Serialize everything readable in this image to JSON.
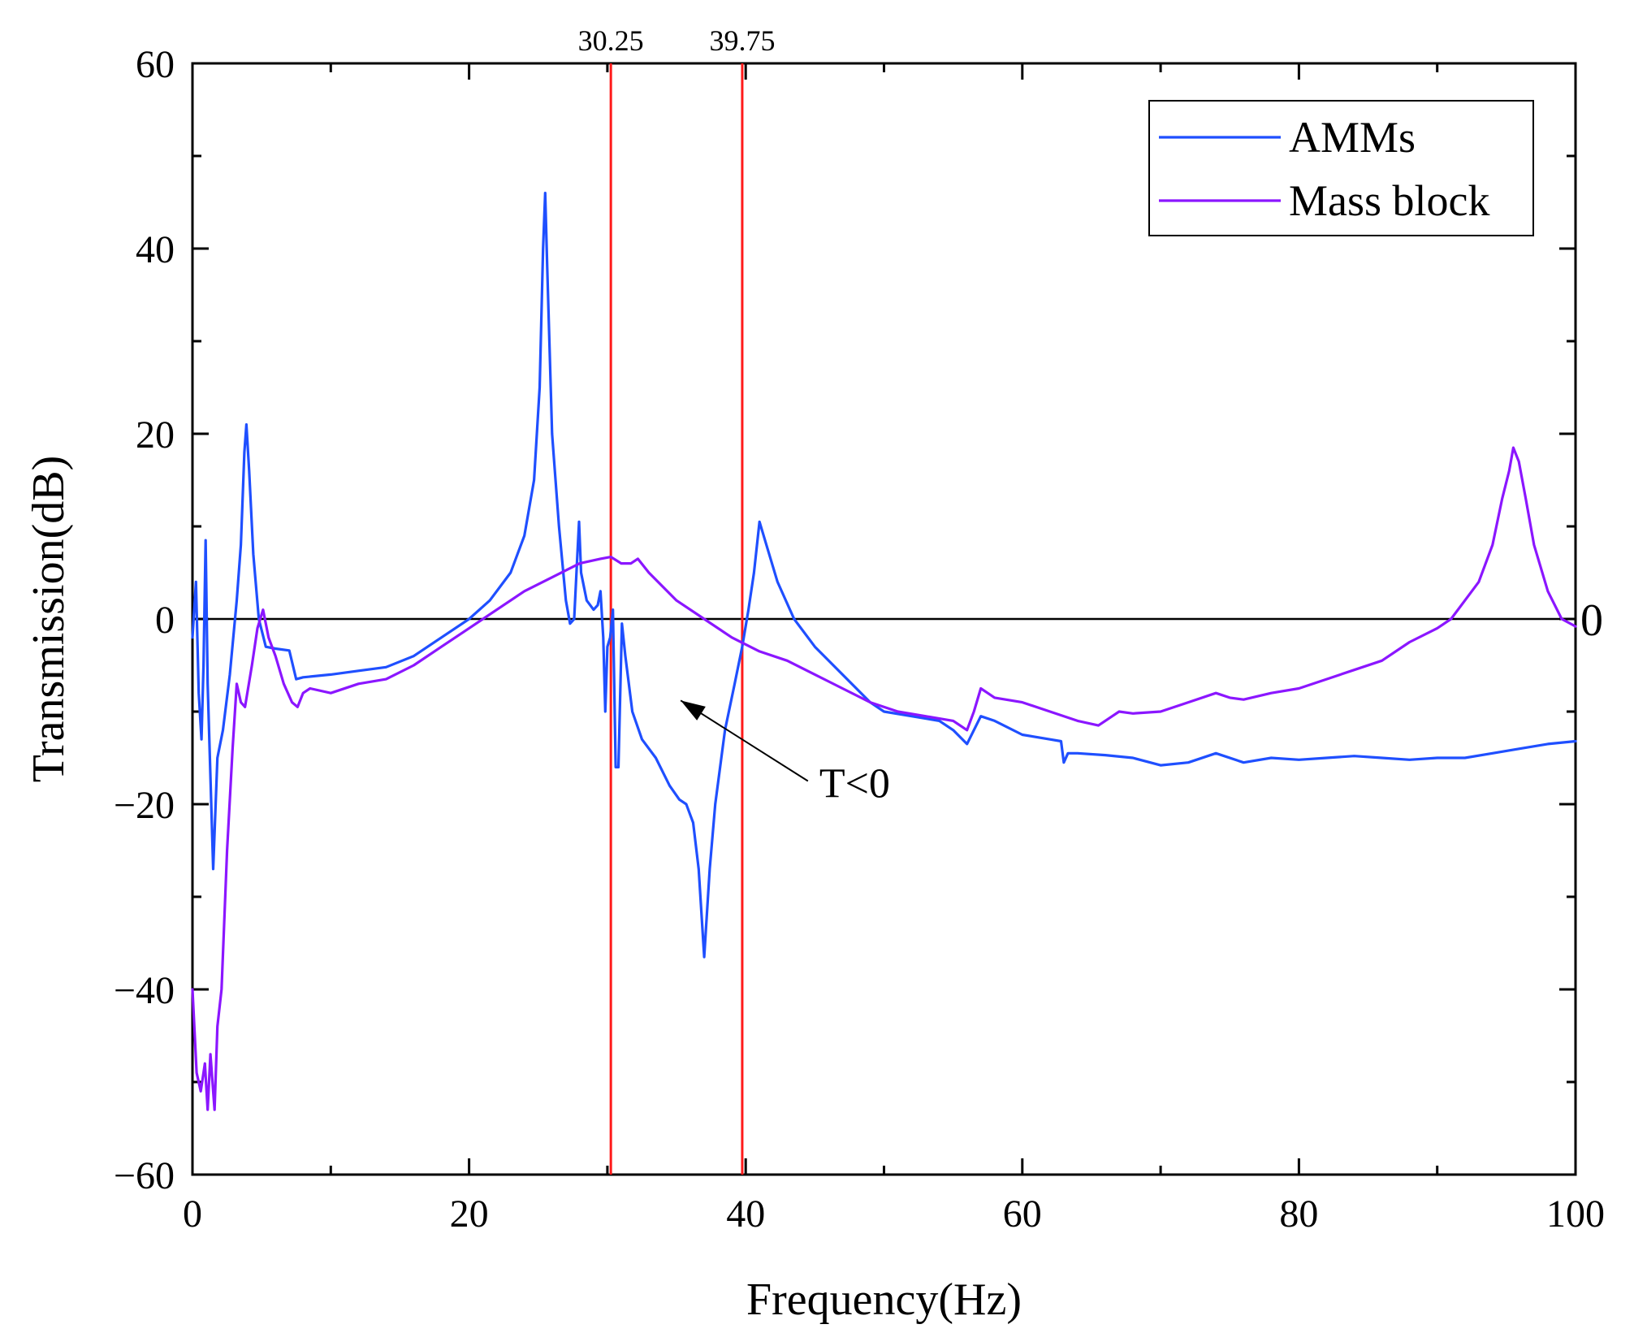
{
  "chart_data": {
    "type": "line",
    "title": "",
    "xlabel": "Frequency(Hz)",
    "ylabel": "Transmission(dB)",
    "xlim": [
      0,
      100
    ],
    "ylim": [
      -60,
      60
    ],
    "x_ticks": [
      0,
      20,
      40,
      60,
      80,
      100
    ],
    "y_ticks": [
      -60,
      -40,
      -20,
      0,
      20,
      40,
      60
    ],
    "grid": false,
    "legend_position": "top-right",
    "reference_lines": {
      "vertical": [
        {
          "x": 30.25,
          "label": "30.25",
          "color": "#ff1a1a"
        },
        {
          "x": 39.75,
          "label": "39.75",
          "color": "#ff1a1a"
        }
      ],
      "horizontal": [
        {
          "y": 0,
          "label": "0",
          "color": "#000000"
        }
      ]
    },
    "annotation": {
      "text": "T<0",
      "arrow_from": [
        44.5,
        -17.5
      ],
      "arrow_to": [
        35.3,
        -8.8
      ]
    },
    "series": [
      {
        "name": "AMMs",
        "color": "#1f4fff",
        "points": [
          [
            0,
            -2
          ],
          [
            0.25,
            4
          ],
          [
            0.45,
            -8
          ],
          [
            0.65,
            -13
          ],
          [
            0.8,
            -5
          ],
          [
            0.95,
            8.5
          ],
          [
            1.1,
            -7
          ],
          [
            1.3,
            -17
          ],
          [
            1.5,
            -27
          ],
          [
            1.8,
            -15
          ],
          [
            2.2,
            -12
          ],
          [
            2.7,
            -6
          ],
          [
            3.2,
            2
          ],
          [
            3.5,
            8
          ],
          [
            3.75,
            18
          ],
          [
            3.9,
            21
          ],
          [
            4.1,
            16
          ],
          [
            4.4,
            7
          ],
          [
            4.8,
            0
          ],
          [
            5.3,
            -3
          ],
          [
            6,
            -3.2
          ],
          [
            7,
            -3.4
          ],
          [
            7.5,
            -6.5
          ],
          [
            8,
            -6.3
          ],
          [
            10,
            -6
          ],
          [
            12,
            -5.6
          ],
          [
            14,
            -5.2
          ],
          [
            16,
            -4
          ],
          [
            18,
            -2
          ],
          [
            20,
            0
          ],
          [
            21.5,
            2
          ],
          [
            23,
            5
          ],
          [
            24,
            9
          ],
          [
            24.7,
            15
          ],
          [
            25.1,
            25
          ],
          [
            25.35,
            40
          ],
          [
            25.5,
            46
          ],
          [
            25.65,
            38
          ],
          [
            26,
            20
          ],
          [
            26.5,
            10
          ],
          [
            27,
            2
          ],
          [
            27.3,
            -0.5
          ],
          [
            27.6,
            0
          ],
          [
            27.8,
            6
          ],
          [
            27.95,
            10.5
          ],
          [
            28.1,
            5
          ],
          [
            28.5,
            2
          ],
          [
            29,
            1
          ],
          [
            29.3,
            1.5
          ],
          [
            29.5,
            3
          ],
          [
            29.7,
            -2
          ],
          [
            29.85,
            -10
          ],
          [
            30,
            -3
          ],
          [
            30.2,
            -2
          ],
          [
            30.4,
            1
          ],
          [
            30.6,
            -16
          ],
          [
            30.8,
            -16
          ],
          [
            31.05,
            -0.5
          ],
          [
            31.3,
            -4
          ],
          [
            31.8,
            -10
          ],
          [
            32.5,
            -13
          ],
          [
            33.5,
            -15
          ],
          [
            34.5,
            -18
          ],
          [
            35.2,
            -19.5
          ],
          [
            35.7,
            -20
          ],
          [
            36.2,
            -22
          ],
          [
            36.6,
            -27
          ],
          [
            37,
            -36.5
          ],
          [
            37.4,
            -27
          ],
          [
            37.8,
            -20
          ],
          [
            38.5,
            -12
          ],
          [
            39.2,
            -7
          ],
          [
            39.75,
            -3
          ],
          [
            40.2,
            1
          ],
          [
            40.6,
            5
          ],
          [
            41,
            10.5
          ],
          [
            41.5,
            8
          ],
          [
            42.3,
            4
          ],
          [
            43.5,
            0
          ],
          [
            45,
            -3
          ],
          [
            47,
            -6
          ],
          [
            49,
            -9
          ],
          [
            50,
            -10
          ],
          [
            52,
            -10.5
          ],
          [
            54,
            -11
          ],
          [
            55,
            -12
          ],
          [
            56,
            -13.5
          ],
          [
            57,
            -10.5
          ],
          [
            58,
            -11
          ],
          [
            60,
            -12.5
          ],
          [
            62,
            -13
          ],
          [
            62.8,
            -13.2
          ],
          [
            63,
            -15.5
          ],
          [
            63.3,
            -14.5
          ],
          [
            64,
            -14.5
          ],
          [
            66,
            -14.7
          ],
          [
            68,
            -15
          ],
          [
            70,
            -15.8
          ],
          [
            72,
            -15.5
          ],
          [
            74,
            -14.5
          ],
          [
            76,
            -15.5
          ],
          [
            78,
            -15
          ],
          [
            80,
            -15.2
          ],
          [
            82,
            -15
          ],
          [
            84,
            -14.8
          ],
          [
            86,
            -15
          ],
          [
            88,
            -15.2
          ],
          [
            90,
            -15
          ],
          [
            92,
            -15
          ],
          [
            94,
            -14.5
          ],
          [
            96,
            -14
          ],
          [
            98,
            -13.5
          ],
          [
            100,
            -13.2
          ]
        ]
      },
      {
        "name": "Mass block",
        "color": "#8b16ff",
        "points": [
          [
            0,
            -40
          ],
          [
            0.3,
            -49
          ],
          [
            0.6,
            -51
          ],
          [
            0.9,
            -48
          ],
          [
            1.1,
            -53
          ],
          [
            1.3,
            -47
          ],
          [
            1.6,
            -53
          ],
          [
            1.8,
            -44
          ],
          [
            2.1,
            -40
          ],
          [
            2.5,
            -25
          ],
          [
            2.9,
            -14
          ],
          [
            3.2,
            -7
          ],
          [
            3.5,
            -9
          ],
          [
            3.8,
            -9.5
          ],
          [
            4.3,
            -5
          ],
          [
            4.7,
            -1
          ],
          [
            5.1,
            1
          ],
          [
            5.5,
            -2
          ],
          [
            6,
            -4
          ],
          [
            6.6,
            -7
          ],
          [
            7.2,
            -9
          ],
          [
            7.6,
            -9.5
          ],
          [
            8,
            -8
          ],
          [
            8.5,
            -7.5
          ],
          [
            10,
            -8
          ],
          [
            12,
            -7
          ],
          [
            14,
            -6.5
          ],
          [
            16,
            -5
          ],
          [
            18,
            -3
          ],
          [
            20,
            -1
          ],
          [
            22,
            1
          ],
          [
            24,
            3
          ],
          [
            26,
            4.5
          ],
          [
            28,
            6
          ],
          [
            29.5,
            6.5
          ],
          [
            30.25,
            6.7
          ],
          [
            31,
            6
          ],
          [
            31.7,
            6
          ],
          [
            32.2,
            6.5
          ],
          [
            33,
            5
          ],
          [
            35,
            2
          ],
          [
            37,
            0
          ],
          [
            39,
            -2
          ],
          [
            41,
            -3.5
          ],
          [
            43,
            -4.5
          ],
          [
            45,
            -6
          ],
          [
            47,
            -7.5
          ],
          [
            49,
            -9
          ],
          [
            51,
            -10
          ],
          [
            53,
            -10.5
          ],
          [
            55,
            -11
          ],
          [
            56,
            -12
          ],
          [
            56.5,
            -10
          ],
          [
            57,
            -7.5
          ],
          [
            57.5,
            -8
          ],
          [
            58,
            -8.5
          ],
          [
            60,
            -9
          ],
          [
            62,
            -10
          ],
          [
            64,
            -11
          ],
          [
            65.5,
            -11.5
          ],
          [
            66.5,
            -10.5
          ],
          [
            67,
            -10
          ],
          [
            68,
            -10.2
          ],
          [
            70,
            -10
          ],
          [
            72,
            -9
          ],
          [
            74,
            -8
          ],
          [
            75,
            -8.5
          ],
          [
            76,
            -8.7
          ],
          [
            78,
            -8
          ],
          [
            80,
            -7.5
          ],
          [
            82,
            -6.5
          ],
          [
            84,
            -5.5
          ],
          [
            86,
            -4.5
          ],
          [
            88,
            -2.5
          ],
          [
            90,
            -1
          ],
          [
            91,
            0
          ],
          [
            92,
            2
          ],
          [
            93,
            4
          ],
          [
            94,
            8
          ],
          [
            94.7,
            13
          ],
          [
            95.2,
            16
          ],
          [
            95.5,
            18.5
          ],
          [
            95.9,
            17
          ],
          [
            96.4,
            13
          ],
          [
            97,
            8
          ],
          [
            98,
            3
          ],
          [
            99,
            0
          ],
          [
            100,
            -0.8
          ]
        ]
      }
    ]
  }
}
